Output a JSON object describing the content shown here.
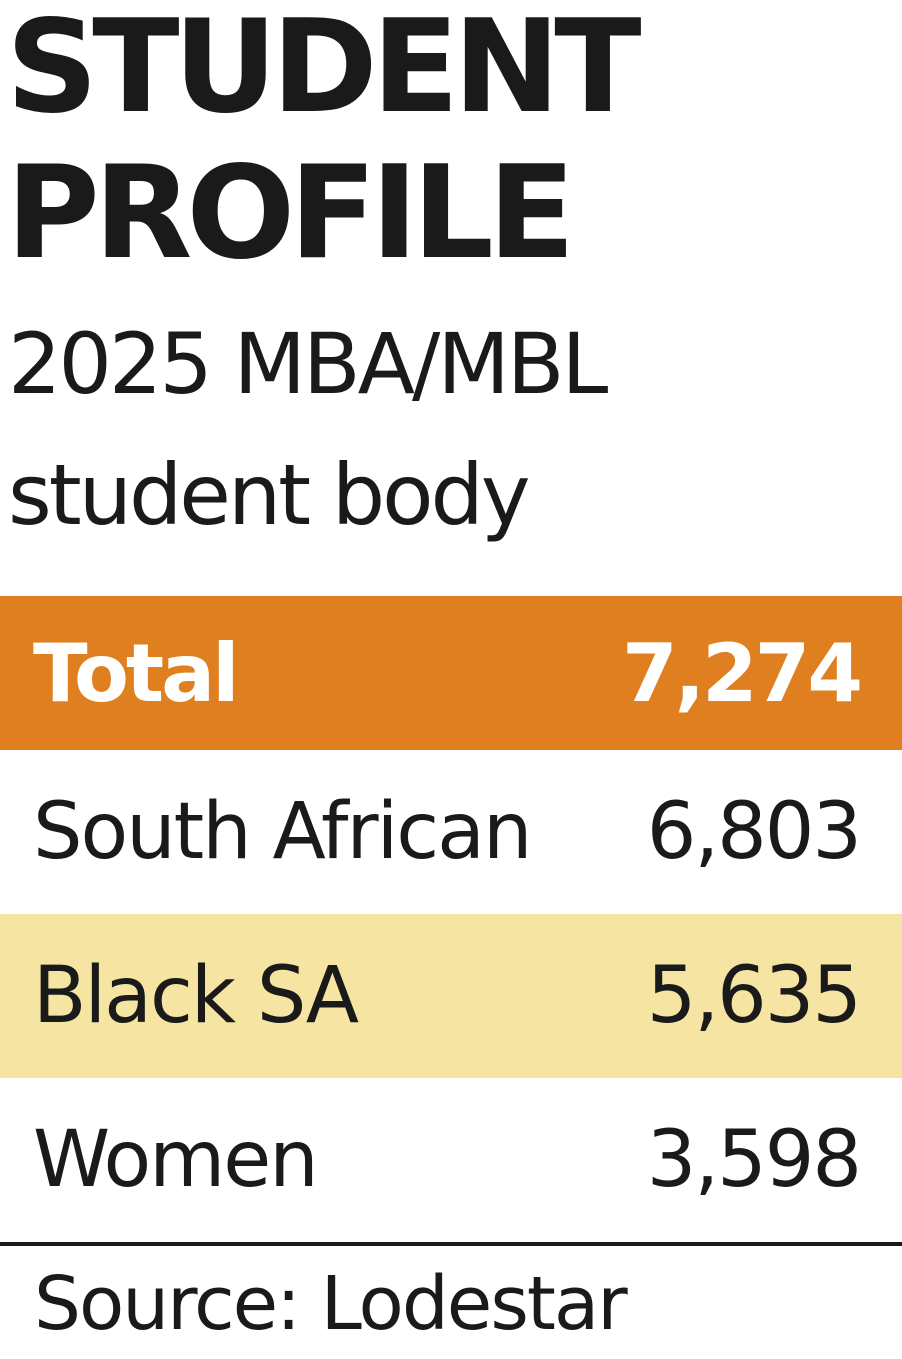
{
  "title": {
    "line1": "STUDENT",
    "line2": "PROFILE"
  },
  "subtitle": {
    "line1": "2025 MBA/MBL",
    "line2": "student body"
  },
  "colors": {
    "total_row": "#e07f20",
    "highlight_row": "#f6e4a2",
    "text": "#1a1a1a"
  },
  "chart_data": {
    "type": "table",
    "title": "STUDENT PROFILE",
    "subtitle": "2025 MBA/MBL student body",
    "rows": [
      {
        "label": "Total",
        "value": "7,274"
      },
      {
        "label": "South African",
        "value": "6,803"
      },
      {
        "label": "Black SA",
        "value": "5,635"
      },
      {
        "label": "Women",
        "value": "3,598"
      }
    ],
    "source": "Source: Lodestar"
  }
}
